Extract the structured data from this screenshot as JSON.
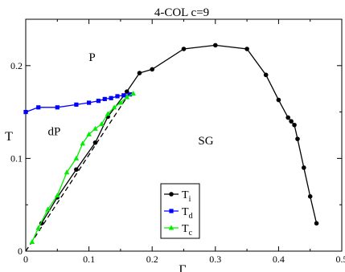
{
  "chart_data": {
    "type": "line",
    "title": "4-COL c=9",
    "xlabel": "Γ",
    "ylabel": "T",
    "xlim": [
      0,
      0.5
    ],
    "ylim": [
      0,
      0.25
    ],
    "x_ticks": [
      0,
      0.1,
      0.2,
      0.3,
      0.4,
      0.5
    ],
    "x_tick_labels": [
      "0",
      "0.1",
      "0.2",
      "0.3",
      "0.4",
      "0.5"
    ],
    "y_ticks": [
      0,
      0.1,
      0.2
    ],
    "y_tick_labels": [
      "0",
      "0.1",
      "0.2"
    ],
    "grid": false,
    "legend_position": "bottom-center",
    "region_labels": [
      {
        "text": "P",
        "x": 0.105,
        "y": 0.205
      },
      {
        "text": "dP",
        "x": 0.045,
        "y": 0.125
      },
      {
        "text": "SG",
        "x": 0.285,
        "y": 0.115
      }
    ],
    "reference_line": {
      "style": "dashed",
      "color": "#000000",
      "x": [
        0,
        0.16
      ],
      "y": [
        0,
        0.166
      ]
    },
    "series": [
      {
        "name": "T_i",
        "label_main": "T",
        "label_sub": "i",
        "color": "#000000",
        "marker": "circle",
        "x": [
          0.025,
          0.05,
          0.08,
          0.11,
          0.13,
          0.16,
          0.18,
          0.2,
          0.25,
          0.3,
          0.35,
          0.38,
          0.4,
          0.415,
          0.42,
          0.425,
          0.43,
          0.44,
          0.45,
          0.46
        ],
        "y": [
          0.03,
          0.058,
          0.088,
          0.117,
          0.145,
          0.172,
          0.192,
          0.196,
          0.218,
          0.222,
          0.218,
          0.19,
          0.163,
          0.144,
          0.14,
          0.136,
          0.121,
          0.09,
          0.059,
          0.03
        ]
      },
      {
        "name": "T_d",
        "label_main": "T",
        "label_sub": "d",
        "color": "#0000ff",
        "marker": "square",
        "x": [
          0,
          0.02,
          0.05,
          0.08,
          0.1,
          0.115,
          0.125,
          0.135,
          0.145,
          0.155,
          0.165
        ],
        "y": [
          0.15,
          0.155,
          0.155,
          0.158,
          0.16,
          0.162,
          0.164,
          0.165,
          0.167,
          0.168,
          0.169
        ]
      },
      {
        "name": "T_c",
        "label_main": "T",
        "label_sub": "c",
        "color": "#00ee00",
        "marker": "triangle",
        "x": [
          0.01,
          0.02,
          0.035,
          0.05,
          0.065,
          0.08,
          0.09,
          0.1,
          0.11,
          0.12,
          0.13,
          0.14,
          0.15,
          0.16,
          0.17
        ],
        "y": [
          0.01,
          0.025,
          0.045,
          0.06,
          0.085,
          0.1,
          0.116,
          0.126,
          0.132,
          0.137,
          0.148,
          0.155,
          0.16,
          0.166,
          0.17
        ]
      }
    ]
  }
}
